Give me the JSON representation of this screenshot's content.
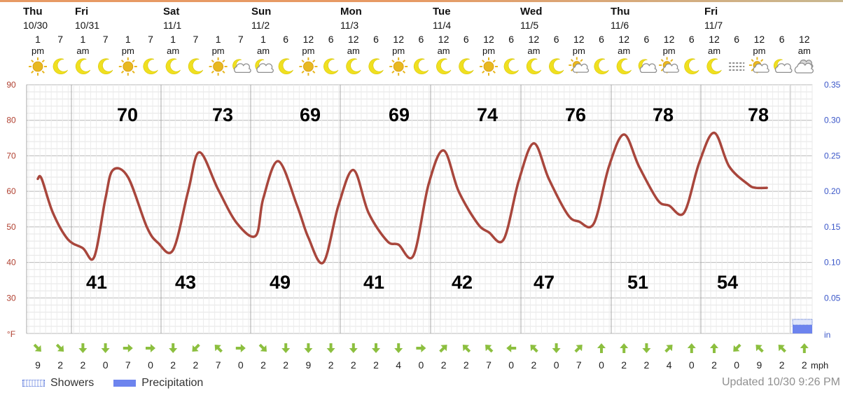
{
  "header": {
    "days": [
      {
        "name": "Thu",
        "date": "10/30"
      },
      {
        "name": "Fri",
        "date": "10/31"
      },
      {
        "name": "Sat",
        "date": "11/1"
      },
      {
        "name": "Sun",
        "date": "11/2"
      },
      {
        "name": "Mon",
        "date": "11/3"
      },
      {
        "name": "Tue",
        "date": "11/4"
      },
      {
        "name": "Wed",
        "date": "11/5"
      },
      {
        "name": "Thu",
        "date": "11/6"
      },
      {
        "name": "Fri",
        "date": "11/7"
      }
    ],
    "hours": [
      {
        "num": "1",
        "ampm": "pm"
      },
      {
        "num": "7",
        "ampm": ""
      },
      {
        "num": "1",
        "ampm": "am"
      },
      {
        "num": "7",
        "ampm": ""
      },
      {
        "num": "1",
        "ampm": "pm"
      },
      {
        "num": "7",
        "ampm": ""
      },
      {
        "num": "1",
        "ampm": "am"
      },
      {
        "num": "7",
        "ampm": ""
      },
      {
        "num": "1",
        "ampm": "pm"
      },
      {
        "num": "7",
        "ampm": ""
      },
      {
        "num": "1",
        "ampm": "am"
      },
      {
        "num": "6",
        "ampm": ""
      },
      {
        "num": "12",
        "ampm": "pm"
      },
      {
        "num": "6",
        "ampm": ""
      },
      {
        "num": "12",
        "ampm": "am"
      },
      {
        "num": "6",
        "ampm": ""
      },
      {
        "num": "12",
        "ampm": "pm"
      },
      {
        "num": "6",
        "ampm": ""
      },
      {
        "num": "12",
        "ampm": "am"
      },
      {
        "num": "6",
        "ampm": ""
      },
      {
        "num": "12",
        "ampm": "pm"
      },
      {
        "num": "6",
        "ampm": ""
      },
      {
        "num": "12",
        "ampm": "am"
      },
      {
        "num": "6",
        "ampm": ""
      },
      {
        "num": "12",
        "ampm": "pm"
      },
      {
        "num": "6",
        "ampm": ""
      },
      {
        "num": "12",
        "ampm": "am"
      },
      {
        "num": "6",
        "ampm": ""
      },
      {
        "num": "12",
        "ampm": "pm"
      },
      {
        "num": "6",
        "ampm": ""
      },
      {
        "num": "12",
        "ampm": "am"
      },
      {
        "num": "6",
        "ampm": ""
      },
      {
        "num": "12",
        "ampm": "pm"
      },
      {
        "num": "6",
        "ampm": ""
      },
      {
        "num": "12",
        "ampm": "am"
      }
    ],
    "sky_icons": [
      "sun-icon",
      "moon-icon",
      "moon-icon",
      "moon-icon",
      "sun-icon",
      "moon-icon",
      "moon-icon",
      "moon-icon",
      "sun-icon",
      "moon-cloud-icon",
      "moon-cloud-icon",
      "moon-icon",
      "sun-icon",
      "moon-icon",
      "moon-icon",
      "moon-icon",
      "sun-icon",
      "moon-icon",
      "moon-icon",
      "moon-icon",
      "sun-icon",
      "moon-icon",
      "moon-icon",
      "moon-icon",
      "partly-sunny-icon",
      "moon-icon",
      "moon-icon",
      "moon-cloud-icon",
      "partly-sunny-icon",
      "moon-icon",
      "moon-icon",
      "fog-icon",
      "partly-sunny-icon",
      "moon-cloud-icon",
      "cloud-icon"
    ]
  },
  "chart_data": {
    "type": "line",
    "x_hours_from_first_tick": [
      0,
      1,
      4,
      8,
      12,
      15,
      18,
      20,
      24,
      29,
      32,
      36,
      40,
      43,
      48,
      53,
      58,
      60,
      64,
      69,
      72,
      76,
      80,
      84,
      88,
      93,
      96,
      100,
      104,
      108,
      112,
      117,
      120,
      124,
      128,
      132,
      136,
      141,
      144,
      148,
      152,
      156,
      160,
      165,
      168,
      172,
      176,
      180,
      184,
      189,
      191,
      194
    ],
    "temperature_f": [
      63.5,
      63.6,
      54,
      46.5,
      44,
      41.5,
      58,
      66,
      64,
      50,
      45.5,
      43.5,
      60,
      71,
      60.5,
      51,
      47.5,
      58,
      68.5,
      56,
      47,
      40,
      56,
      66,
      54,
      46,
      45,
      42,
      62,
      71.5,
      60,
      51,
      48.5,
      46.5,
      63,
      73.5,
      63.5,
      53.5,
      51.5,
      51,
      67,
      76,
      67,
      57.5,
      56,
      54,
      68,
      76.5,
      67,
      62,
      61,
      61
    ],
    "y_left": {
      "unit": "°F",
      "ticks": [
        "90",
        "80",
        "70",
        "60",
        "50",
        "40",
        "30"
      ],
      "range": [
        20,
        90
      ]
    },
    "y_right": {
      "unit": "in",
      "ticks": [
        "0.35",
        "0.30",
        "0.25",
        "0.20",
        "0.15",
        "0.10",
        "0.05"
      ],
      "range": [
        0,
        0.35
      ]
    },
    "highs": [
      "70",
      "73",
      "69",
      "69",
      "74",
      "76",
      "78",
      "78"
    ],
    "lows": [
      "41",
      "43",
      "49",
      "41",
      "42",
      "47",
      "51",
      "54"
    ],
    "precipitation_in": {
      "showers_at_end": 0.01
    },
    "wind": {
      "unit": "mph",
      "speeds": [
        "9",
        "2",
        "2",
        "0",
        "7",
        "0",
        "2",
        "2",
        "7",
        "0",
        "2",
        "2",
        "9",
        "2",
        "2",
        "2",
        "4",
        "0",
        "2",
        "2",
        "7",
        "0",
        "2",
        "0",
        "7",
        "0",
        "2",
        "2",
        "4",
        "0",
        "2",
        "0",
        "9",
        "2",
        "2"
      ],
      "directions_deg": [
        135,
        135,
        180,
        180,
        90,
        90,
        180,
        225,
        315,
        90,
        135,
        180,
        180,
        180,
        180,
        180,
        180,
        90,
        45,
        315,
        315,
        270,
        315,
        180,
        45,
        0,
        0,
        180,
        45,
        0,
        0,
        225,
        315,
        315,
        0
      ]
    },
    "grid": true,
    "legend": {
      "position": "bottom-left",
      "items": [
        "Showers",
        "Precipitation"
      ]
    },
    "series_colors": {
      "temperature": "#a8463c",
      "showers": "#5070d8",
      "precipitation": "#6d84ee",
      "wind_arrow": "#8cbf3f",
      "sun": "#e8b820",
      "moon": "#f0e020",
      "cloud": "#8f8f8f"
    }
  },
  "footer": {
    "legend_showers": "Showers",
    "legend_precipitation": "Precipitation",
    "updated": "Updated 10/30 9:26 PM"
  }
}
